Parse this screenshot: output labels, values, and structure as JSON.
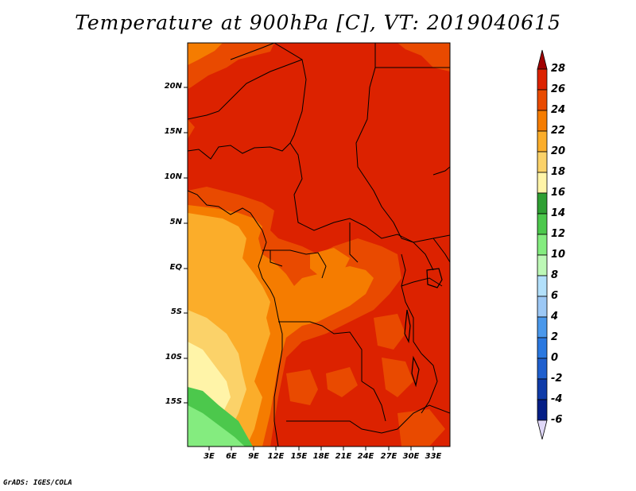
{
  "title": "Temperature at 900hPa [C], VT: 2019040615",
  "credit": "GrADS: IGES/COLA",
  "lat_labels": [
    "20N",
    "15N",
    "10N",
    "5N",
    "EQ",
    "5S",
    "10S",
    "15S"
  ],
  "lon_labels": [
    "3E",
    "6E",
    "9E",
    "12E",
    "15E",
    "18E",
    "21E",
    "24E",
    "27E",
    "30E",
    "33E"
  ],
  "colorbar": {
    "labels": [
      "28",
      "26",
      "24",
      "22",
      "20",
      "18",
      "16",
      "14",
      "12",
      "10",
      "8",
      "6",
      "4",
      "2",
      "0",
      "-2",
      "-4",
      "-6"
    ],
    "colors": [
      "#a00000",
      "#dc2200",
      "#e94a00",
      "#f57c00",
      "#fbad2a",
      "#fbd269",
      "#fff4a8",
      "#2f9f33",
      "#4cc84c",
      "#84ec7f",
      "#bdf8b6",
      "#b2e0fb",
      "#9cc8f5",
      "#4a98eb",
      "#2a78e0",
      "#1f5fce",
      "#0f3ba8",
      "#041e86",
      "#e0d8f8"
    ]
  },
  "colors": {
    "hot": "#dc2200",
    "warm": "#e94a00",
    "orange": "#f57c00",
    "light_orange": "#fbad2a",
    "yellow": "#fbd269",
    "pale": "#fff4a8",
    "green": "#84ec7f",
    "mid_green": "#4cc84c"
  }
}
